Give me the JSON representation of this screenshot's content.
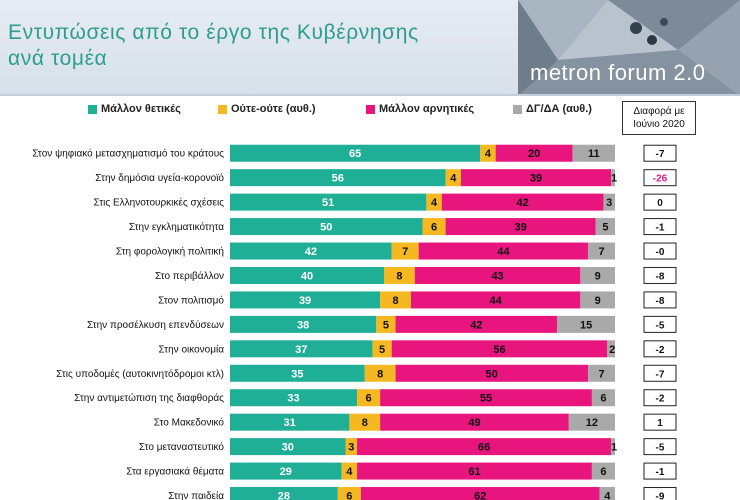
{
  "title_line1": "Εντυπώσεις από το έργο της Κυβέρνησης",
  "title_line2": "ανά τομέα",
  "logo_text": "metron forum 2.0",
  "diff_header": "Διαφορά με Ιούνιο 2020",
  "colors": {
    "positive": "#1fae96",
    "neutral": "#f5b820",
    "negative": "#e7157d",
    "dk": "#a9a9a9",
    "diff_negative": "#e7157d"
  },
  "chart_data": {
    "type": "bar",
    "orientation": "horizontal",
    "stacked": true,
    "xlim": [
      0,
      100
    ],
    "grid": false,
    "legend_position": "top",
    "categories": [
      "Στον ψηφιακό μετασχηματισμό του κράτους",
      "Στην δημόσια υγεία-κορονοϊό",
      "Στις Ελληνοτουρκικές σχέσεις",
      "Στην εγκληματικότητα",
      "Στη φορολογική πολιτική",
      "Στο περιβάλλον",
      "Στον πολιτισμό",
      "Στην προσέλκυση επενδύσεων",
      "Στην οικονομία",
      "Στις υποδομές (αυτοκινητόδρομοι κτλ)",
      "Στην αντιμετώπιση της διαφθοράς",
      "Στο Μακεδονικό",
      "Στο μεταναστευτικό",
      "Στα εργασιακά θέματα",
      "Στην παιδεία"
    ],
    "series": [
      {
        "name": "Μάλλον θετικές",
        "color": "#1fae96",
        "values": [
          65,
          56,
          51,
          50,
          42,
          40,
          39,
          38,
          37,
          35,
          33,
          31,
          30,
          29,
          28
        ]
      },
      {
        "name": "Ούτε-ούτε  (αυθ.)",
        "color": "#f5b820",
        "values": [
          4,
          4,
          4,
          6,
          7,
          8,
          8,
          5,
          5,
          8,
          6,
          8,
          3,
          4,
          6
        ]
      },
      {
        "name": "Μάλλον αρνητικές",
        "color": "#e7157d",
        "values": [
          20,
          39,
          42,
          39,
          44,
          43,
          44,
          42,
          56,
          50,
          55,
          49,
          66,
          61,
          62
        ]
      },
      {
        "name": "ΔΓ/ΔΑ (αυθ.)",
        "color": "#a9a9a9",
        "values": [
          11,
          1,
          3,
          5,
          7,
          9,
          9,
          15,
          2,
          7,
          6,
          12,
          1,
          6,
          4
        ]
      }
    ],
    "diff": [
      "-7",
      "-26",
      "0",
      "-1",
      "-0",
      "-8",
      "-8",
      "-5",
      "-2",
      "-7",
      "-2",
      "1",
      "-5",
      "-1",
      "-9"
    ]
  }
}
